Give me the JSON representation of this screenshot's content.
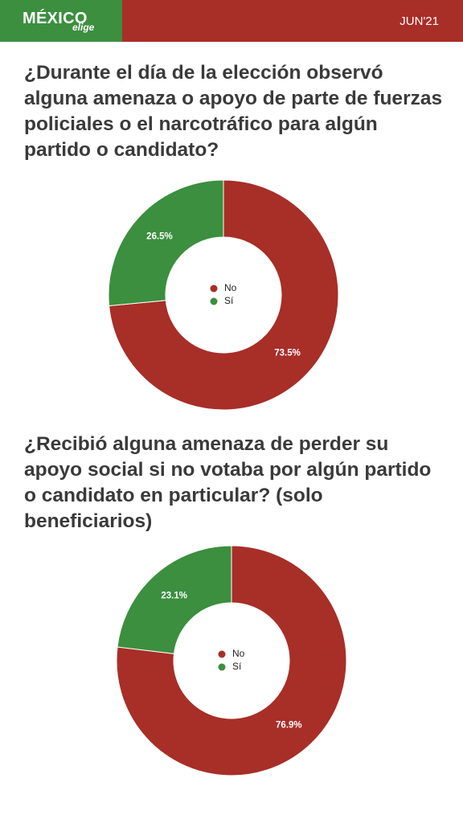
{
  "header": {
    "brand": "MÉXICO",
    "brand_sub": "elige",
    "date": "JUN'21"
  },
  "colors": {
    "no": "#a82e28",
    "si": "#3b8f3e"
  },
  "questions": [
    "¿Durante el día de la elección observó alguna amenaza o apoyo de parte de fuerzas policiales o el narcotráfico para algún partido o candidato?",
    "¿Recibió alguna amenaza de perder su apoyo social si no votaba por algún partido o candidato en particular? (solo beneficiarios)"
  ],
  "chart_data": [
    {
      "type": "pie",
      "title": "¿Durante el día de la elección observó alguna amenaza o apoyo de parte de fuerzas policiales o el narcotráfico para algún partido o candidato?",
      "categories": [
        "No",
        "Sí"
      ],
      "values": [
        73.5,
        26.5
      ],
      "labels": [
        "73.5%",
        "26.5%"
      ],
      "colors": [
        "#a82e28",
        "#3b8f3e"
      ],
      "legend": "center"
    },
    {
      "type": "pie",
      "title": "¿Recibió alguna amenaza de perder su apoyo social si no votaba por algún partido o candidato en particular? (solo beneficiarios)",
      "categories": [
        "No",
        "Sí"
      ],
      "values": [
        76.9,
        23.1
      ],
      "labels": [
        "76.9%",
        "23.1%"
      ],
      "colors": [
        "#a82e28",
        "#3b8f3e"
      ],
      "legend": "center"
    }
  ]
}
